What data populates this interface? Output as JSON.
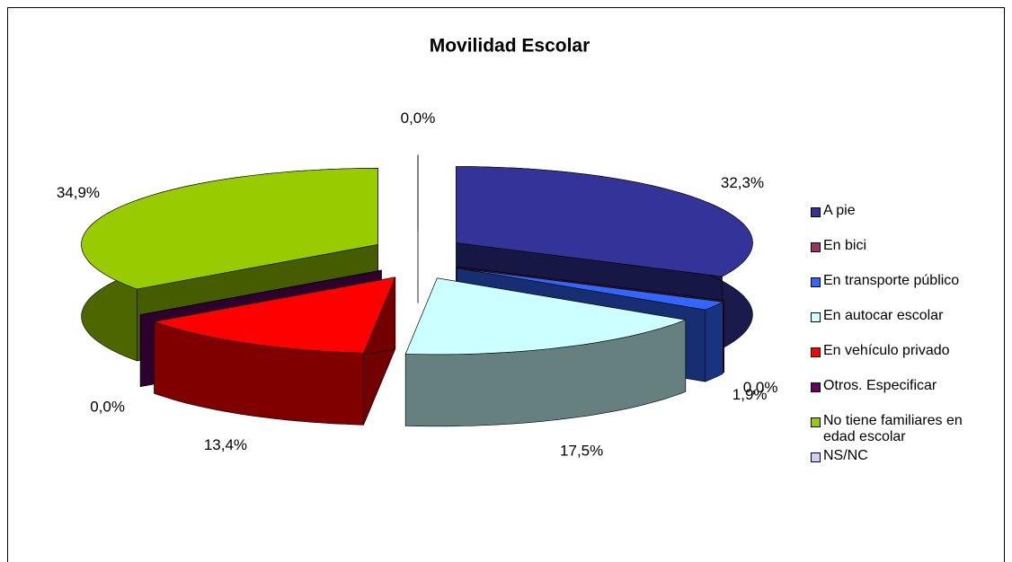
{
  "chart_data": {
    "type": "pie",
    "title": "Movilidad Escolar",
    "categories": [
      "A pie",
      "En bici",
      "En transporte público",
      "En autocar escolar",
      "En vehículo privado",
      "Otros. Especificar",
      "No tiene familiares en edad escolar",
      "NS/NC"
    ],
    "values": [
      32.3,
      0.0,
      1.9,
      17.5,
      13.4,
      0.0,
      34.9,
      0.0
    ],
    "value_labels": [
      "32,3%",
      "0,0%",
      "1,9%",
      "17,5%",
      "13,4%",
      "0,0%",
      "34,9%",
      "0,0%"
    ],
    "colors": [
      "#333399",
      "#993366",
      "#3366ff",
      "#ccffff",
      "#ff0000",
      "#660066",
      "#99cc00",
      "#ccccff"
    ],
    "legend": "right"
  }
}
